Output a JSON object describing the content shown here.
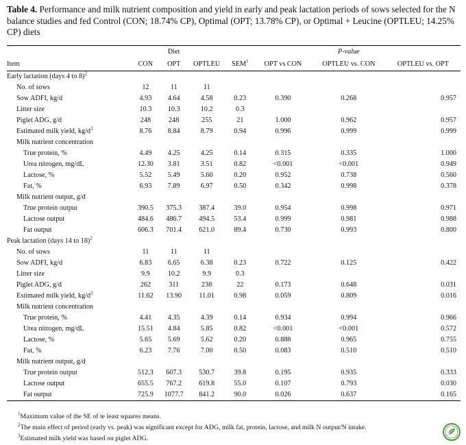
{
  "caption": {
    "label": "Table 4.",
    "text": "Performance and milk nutrient composition and yield in early and peak lactation periods of sows selected for the N balance studies and fed Control (CON; 18.74% CP), Optimal (OPT; 13.78% CP), or Optimal + Leucine (OPTLEU; 14.25% CP) diets"
  },
  "header": {
    "diet": "Diet",
    "pvalue": "P-value",
    "item": "Item",
    "con": "CON",
    "opt": "OPT",
    "optleu": "OPTLEU",
    "sem": "SEM",
    "sem_sup": "1",
    "opt_vs_con": "OPT vs CON",
    "optleu_vs_con": "OPTLEU vs. CON",
    "optleu_vs_opt": "OPTLEU vs. OPT"
  },
  "rows": [
    {
      "item": "Early lactation (days 4 to 8)",
      "sup": "2",
      "level": 0,
      "section": true
    },
    {
      "item": "No. of sows",
      "level": 1,
      "con": "12",
      "opt": "11",
      "optleu": "11",
      "sem": "",
      "p1": "",
      "p2": "",
      "p3": ""
    },
    {
      "item": "Sow ADFI, kg/d",
      "level": 1,
      "con": "4.93",
      "opt": "4.64",
      "optleu": "4.58",
      "sem": "0.23",
      "p1": "0.390",
      "p2": "0.268",
      "p3": "0.957"
    },
    {
      "item": "Litter size",
      "level": 1,
      "con": "10.3",
      "opt": "10.3",
      "optleu": "10.2",
      "sem": "0.3",
      "p1": "",
      "p2": "",
      "p3": ""
    },
    {
      "item": "Piglet ADG, g/d",
      "level": 1,
      "con": "248",
      "opt": "248",
      "optleu": "255",
      "sem": "21",
      "p1": "1.000",
      "p2": "0.962",
      "p3": "0.957"
    },
    {
      "item": "Estimated milk yield, kg/d",
      "sup": "3",
      "level": 1,
      "con": "8.76",
      "opt": "8.84",
      "optleu": "8.79",
      "sem": "0.94",
      "p1": "0.996",
      "p2": "0.999",
      "p3": "0.999"
    },
    {
      "item": "Milk nutrient concentration",
      "level": 1,
      "section": true
    },
    {
      "item": "True protein, %",
      "level": 2,
      "con": "4.49",
      "opt": "4.25",
      "optleu": "4.25",
      "sem": "0.14",
      "p1": "0.315",
      "p2": "0.335",
      "p3": "1.000"
    },
    {
      "item": "Urea nitrogen, mg/dL",
      "level": 2,
      "con": "12.30",
      "opt": "3.81",
      "optleu": "3.51",
      "sem": "0.82",
      "p1": "<0.001",
      "p2": "<0.001",
      "p3": "0.949"
    },
    {
      "item": "Lactose, %",
      "level": 2,
      "con": "5.52",
      "opt": "5.49",
      "optleu": "5.60",
      "sem": "0.20",
      "p1": "0.952",
      "p2": "0.738",
      "p3": "0.560"
    },
    {
      "item": "Fat, %",
      "level": 2,
      "con": "6.93",
      "opt": "7.89",
      "optleu": "6.97",
      "sem": "0.50",
      "p1": "0.342",
      "p2": "0.998",
      "p3": "0.378"
    },
    {
      "item": "Milk nutrient output, g/d",
      "level": 1,
      "section": true
    },
    {
      "item": "True protein output",
      "level": 2,
      "con": "390.5",
      "opt": "375.3",
      "optleu": "387.4",
      "sem": "39.0",
      "p1": "0.954",
      "p2": "0.998",
      "p3": "0.971"
    },
    {
      "item": "Lactose output",
      "level": 2,
      "con": "484.6",
      "opt": "486.7",
      "optleu": "494.5",
      "sem": "53.4",
      "p1": "0.999",
      "p2": "0.981",
      "p3": "0.988"
    },
    {
      "item": "Fat output",
      "level": 2,
      "con": "606.3",
      "opt": "701.4",
      "optleu": "621.0",
      "sem": "89.4",
      "p1": "0.730",
      "p2": "0.993",
      "p3": "0.800"
    },
    {
      "item": "Peak lactation (days 14 to 18)",
      "sup": "2",
      "level": 0,
      "section": true
    },
    {
      "item": "No. of sows",
      "level": 1,
      "con": "11",
      "opt": "11",
      "optleu": "11",
      "sem": "",
      "p1": "",
      "p2": "",
      "p3": ""
    },
    {
      "item": "Sow ADFI, kg/d",
      "level": 1,
      "con": "6.83",
      "opt": "6.65",
      "optleu": "6.38",
      "sem": "0.23",
      "p1": "0.722",
      "p2": "0.125",
      "p3": "0.422"
    },
    {
      "item": "Litter size",
      "level": 1,
      "con": "9.9",
      "opt": "10.2",
      "optleu": "9.9",
      "sem": "0.3",
      "p1": "",
      "p2": "",
      "p3": ""
    },
    {
      "item": "Piglet ADG, g/d",
      "level": 1,
      "con": "262",
      "opt": "311",
      "optleu": "238",
      "sem": "22",
      "p1": "0.173",
      "p2": "0.648",
      "p3": "0.031"
    },
    {
      "item": "Estimated milk yield, kg/d",
      "sup": "3",
      "level": 1,
      "con": "11.62",
      "opt": "13.90",
      "optleu": "11.01",
      "sem": "0.98",
      "p1": "0.059",
      "p2": "0.809",
      "p3": "0.016"
    },
    {
      "item": "Milk nutrient concentration",
      "level": 1,
      "section": true
    },
    {
      "item": "True protein, %",
      "level": 2,
      "con": "4.41",
      "opt": "4.35",
      "optleu": "4.39",
      "sem": "0.14",
      "p1": "0.934",
      "p2": "0.994",
      "p3": "0.966"
    },
    {
      "item": "Urea nitrogen, mg/dL",
      "level": 2,
      "con": "15.51",
      "opt": "4.84",
      "optleu": "5.85",
      "sem": "0.82",
      "p1": "<0.001",
      "p2": "<0.001",
      "p3": "0.572"
    },
    {
      "item": "Lactose, %",
      "level": 2,
      "con": "5.65",
      "opt": "5.69",
      "optleu": "5.62",
      "sem": "0.20",
      "p1": "0.888",
      "p2": "0.965",
      "p3": "0.755"
    },
    {
      "item": "Fat, %",
      "level": 2,
      "con": "6.23",
      "opt": "7.76",
      "optleu": "7.00",
      "sem": "0.50",
      "p1": "0.083",
      "p2": "0.510",
      "p3": "0.510"
    },
    {
      "item": "Milk nutrient output, g/d",
      "level": 1,
      "section": true
    },
    {
      "item": "True protein output",
      "level": 2,
      "con": "512.3",
      "opt": "607.3",
      "optleu": "530.7",
      "sem": "39.8",
      "p1": "0.195",
      "p2": "0.935",
      "p3": "0.333"
    },
    {
      "item": "Lactose output",
      "level": 2,
      "con": "655.5",
      "opt": "767.2",
      "optleu": "619.8",
      "sem": "55.0",
      "p1": "0.107",
      "p2": "0.793",
      "p3": "0.030"
    },
    {
      "item": "Fat output",
      "level": 2,
      "con": "725.9",
      "opt": "1077.7",
      "optleu": "841.2",
      "sem": "90.0",
      "p1": "0.026",
      "p2": "0.637",
      "p3": "0.165"
    }
  ],
  "footnotes": [
    {
      "sup": "1",
      "text": "Maximum value of the SE  of te least squares means."
    },
    {
      "sup": "2",
      "text": "The main effect of period (early vs. peak) was significant except for ADG, milk fat, protein, lactose, and milk N output/N intake."
    },
    {
      "sup": "3",
      "text": "Estimated milk yield was based on piglet ADG."
    }
  ],
  "logo_icon": "leaf-badge-icon",
  "colors": {
    "logo_green": "#4a9a3c"
  }
}
